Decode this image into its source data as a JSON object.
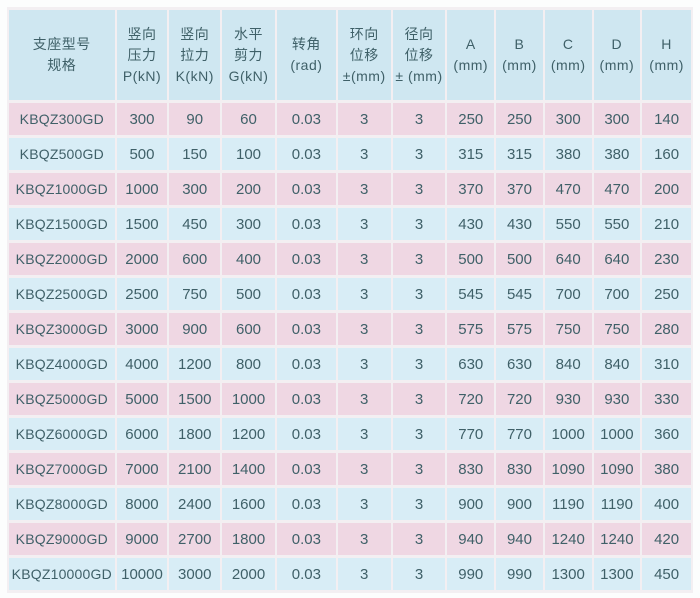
{
  "colors": {
    "header_bg": "#cfe7f1",
    "row_pink": "#efd7e3",
    "row_blue": "#d8edf6",
    "grid_gap": "#f3eff2",
    "text": "#3f6068",
    "page_bg": "#fcfdfd"
  },
  "table": {
    "columns": [
      {
        "id": "model",
        "label_lines": [
          "支座型号",
          "规格"
        ]
      },
      {
        "id": "vertical-pressure",
        "label_lines": [
          "竖向",
          "压力",
          "P(kN)"
        ]
      },
      {
        "id": "vertical-tension",
        "label_lines": [
          "竖向",
          "拉力",
          "K(kN)"
        ]
      },
      {
        "id": "horizontal-shear",
        "label_lines": [
          "水平",
          "剪力",
          "G(kN)"
        ]
      },
      {
        "id": "rotation-angle",
        "label_lines": [
          "转角",
          "(rad)"
        ]
      },
      {
        "id": "ring-displacement",
        "label_lines": [
          "环向",
          "位移",
          "±(mm)"
        ]
      },
      {
        "id": "radial-displacement",
        "label_lines": [
          "径向",
          "位移",
          "± (mm)"
        ]
      },
      {
        "id": "dim-a",
        "label_lines": [
          "A",
          "(mm)"
        ]
      },
      {
        "id": "dim-b",
        "label_lines": [
          "B",
          "(mm)"
        ]
      },
      {
        "id": "dim-c",
        "label_lines": [
          "C",
          "(mm)"
        ]
      },
      {
        "id": "dim-d",
        "label_lines": [
          "D",
          "(mm)"
        ]
      },
      {
        "id": "dim-h",
        "label_lines": [
          "H",
          "(mm)"
        ]
      }
    ],
    "rows": [
      [
        "KBQZ300GD",
        "300",
        "90",
        "60",
        "0.03",
        "3",
        "3",
        "250",
        "250",
        "300",
        "300",
        "140"
      ],
      [
        "KBQZ500GD",
        "500",
        "150",
        "100",
        "0.03",
        "3",
        "3",
        "315",
        "315",
        "380",
        "380",
        "160"
      ],
      [
        "KBQZ1000GD",
        "1000",
        "300",
        "200",
        "0.03",
        "3",
        "3",
        "370",
        "370",
        "470",
        "470",
        "200"
      ],
      [
        "KBQZ1500GD",
        "1500",
        "450",
        "300",
        "0.03",
        "3",
        "3",
        "430",
        "430",
        "550",
        "550",
        "210"
      ],
      [
        "KBQZ2000GD",
        "2000",
        "600",
        "400",
        "0.03",
        "3",
        "3",
        "500",
        "500",
        "640",
        "640",
        "230"
      ],
      [
        "KBQZ2500GD",
        "2500",
        "750",
        "500",
        "0.03",
        "3",
        "3",
        "545",
        "545",
        "700",
        "700",
        "250"
      ],
      [
        "KBQZ3000GD",
        "3000",
        "900",
        "600",
        "0.03",
        "3",
        "3",
        "575",
        "575",
        "750",
        "750",
        "280"
      ],
      [
        "KBQZ4000GD",
        "4000",
        "1200",
        "800",
        "0.03",
        "3",
        "3",
        "630",
        "630",
        "840",
        "840",
        "310"
      ],
      [
        "KBQZ5000GD",
        "5000",
        "1500",
        "1000",
        "0.03",
        "3",
        "3",
        "720",
        "720",
        "930",
        "930",
        "330"
      ],
      [
        "KBQZ6000GD",
        "6000",
        "1800",
        "1200",
        "0.03",
        "3",
        "3",
        "770",
        "770",
        "1000",
        "1000",
        "360"
      ],
      [
        "KBQZ7000GD",
        "7000",
        "2100",
        "1400",
        "0.03",
        "3",
        "3",
        "830",
        "830",
        "1090",
        "1090",
        "380"
      ],
      [
        "KBQZ8000GD",
        "8000",
        "2400",
        "1600",
        "0.03",
        "3",
        "3",
        "900",
        "900",
        "1190",
        "1190",
        "400"
      ],
      [
        "KBQZ9000GD",
        "9000",
        "2700",
        "1800",
        "0.03",
        "3",
        "3",
        "940",
        "940",
        "1240",
        "1240",
        "420"
      ],
      [
        "KBQZ10000GD",
        "10000",
        "3000",
        "2000",
        "0.03",
        "3",
        "3",
        "990",
        "990",
        "1300",
        "1300",
        "450"
      ]
    ]
  }
}
